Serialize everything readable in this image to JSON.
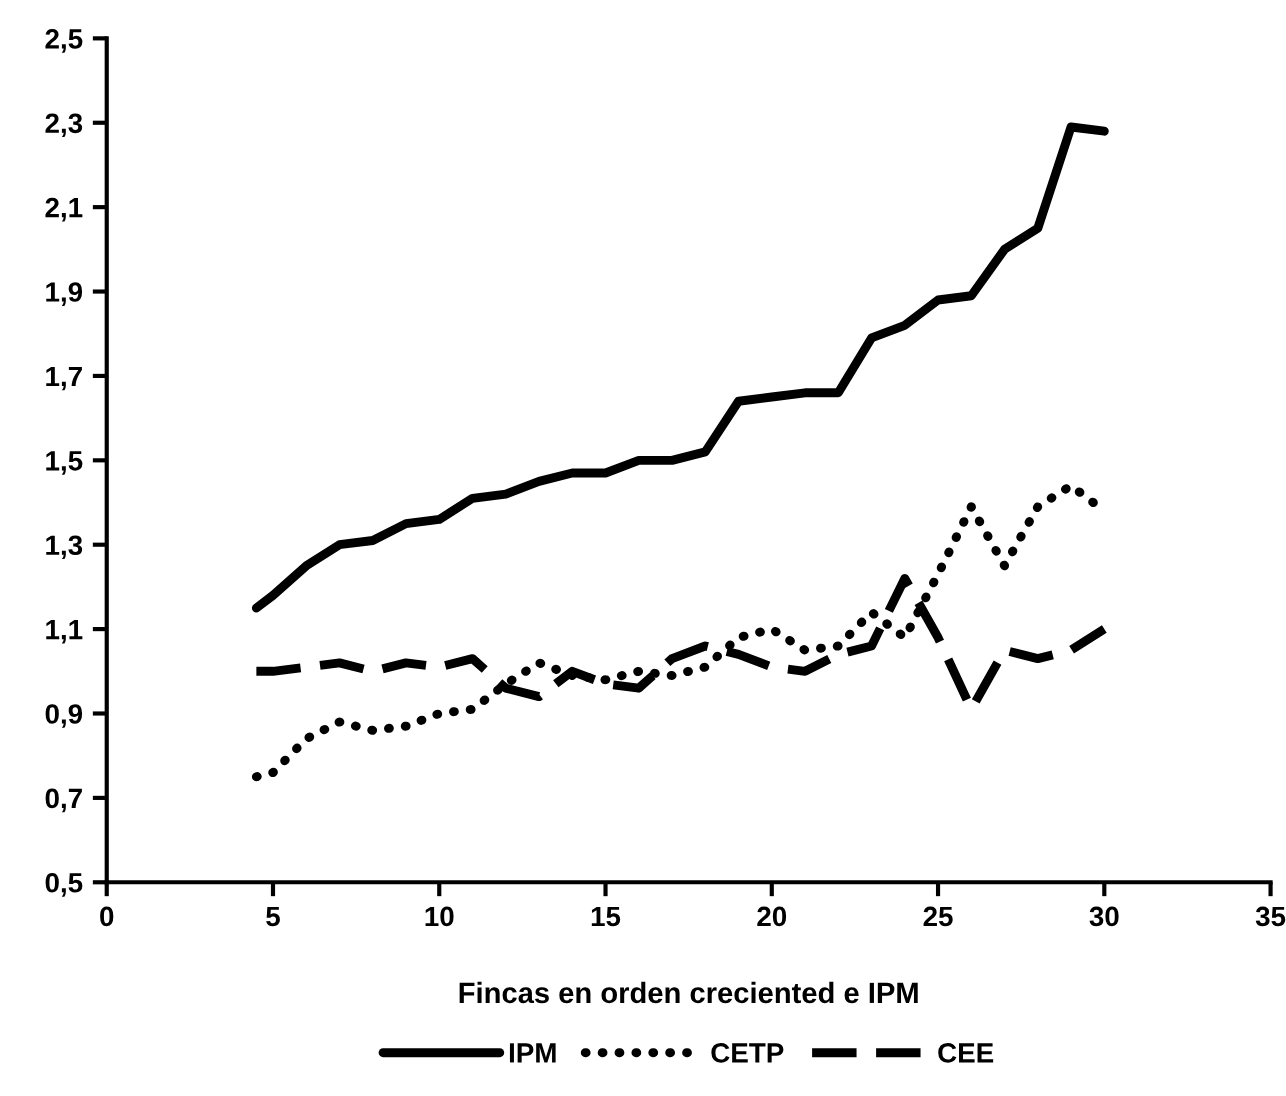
{
  "chart_data": {
    "type": "line",
    "xlabel": "Fincas en orden creciented e IPM",
    "x": [
      4.5,
      5,
      6,
      7,
      8,
      9,
      10,
      11,
      12,
      13,
      14,
      15,
      16,
      17,
      18,
      19,
      20,
      21,
      22,
      23,
      24,
      25,
      26,
      27,
      28,
      29,
      30
    ],
    "series": [
      {
        "name": "IPM",
        "color": "#000000",
        "line_style": "solid",
        "values": [
          1.15,
          1.18,
          1.25,
          1.3,
          1.31,
          1.35,
          1.36,
          1.41,
          1.42,
          1.45,
          1.47,
          1.47,
          1.5,
          1.5,
          1.52,
          1.64,
          1.65,
          1.66,
          1.66,
          1.79,
          1.82,
          1.88,
          1.89,
          2.0,
          2.05,
          2.29,
          2.28
        ]
      },
      {
        "name": "CETP",
        "color": "#000000",
        "line_style": "dotted",
        "values": [
          0.75,
          0.76,
          0.84,
          0.88,
          0.86,
          0.87,
          0.9,
          0.91,
          0.97,
          1.02,
          0.99,
          0.98,
          1.0,
          0.99,
          1.01,
          1.08,
          1.1,
          1.05,
          1.06,
          1.14,
          1.08,
          1.23,
          1.39,
          1.25,
          1.39,
          1.44,
          1.38
        ]
      },
      {
        "name": "CEE",
        "color": "#000000",
        "line_style": "dashed",
        "values": [
          1.0,
          1.0,
          1.01,
          1.02,
          1.0,
          1.02,
          1.01,
          1.03,
          0.96,
          0.94,
          1.0,
          0.97,
          0.96,
          1.03,
          1.06,
          1.04,
          1.01,
          1.0,
          1.04,
          1.06,
          1.22,
          1.08,
          0.91,
          1.05,
          1.03,
          1.05,
          1.1
        ]
      }
    ],
    "xlim": [
      0,
      35
    ],
    "xticks": [
      0,
      5,
      10,
      15,
      20,
      25,
      30,
      35
    ],
    "ylim": [
      0.5,
      2.5
    ],
    "yticks": [
      {
        "value": 0.5,
        "label": "0,5"
      },
      {
        "value": 0.7,
        "label": "0,7"
      },
      {
        "value": 0.9,
        "label": "0,9"
      },
      {
        "value": 1.1,
        "label": "1,1"
      },
      {
        "value": 1.3,
        "label": "1,3"
      },
      {
        "value": 1.5,
        "label": "1,5"
      },
      {
        "value": 1.7,
        "label": "1,7"
      },
      {
        "value": 1.9,
        "label": "1,9"
      },
      {
        "value": 2.1,
        "label": "2,1"
      },
      {
        "value": 2.3,
        "label": "2,3"
      },
      {
        "value": 2.5,
        "label": "2,5"
      }
    ],
    "grid": false,
    "legend": "bottom"
  }
}
